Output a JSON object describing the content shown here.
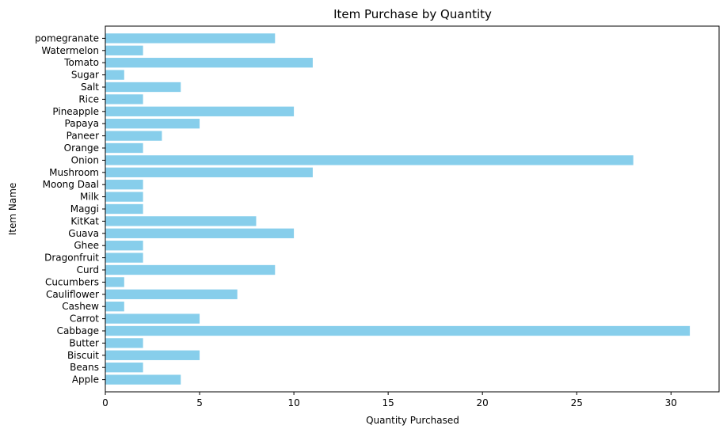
{
  "chart_data": {
    "type": "bar",
    "orientation": "horizontal",
    "title": "Item Purchase by Quantity",
    "xlabel": "Quantity Purchased",
    "ylabel": "Item Name",
    "xlim": [
      0,
      32.55
    ],
    "xticks": [
      0,
      5,
      10,
      15,
      20,
      25,
      30
    ],
    "grid": false,
    "bar_color": "#87ceeb",
    "categories": [
      "Apple",
      "Beans",
      "Biscuit",
      "Butter",
      "Cabbage",
      "Carrot",
      "Cashew",
      "Cauliflower",
      "Cucumbers",
      "Curd",
      "Dragonfruit",
      "Ghee",
      "Guava",
      "KitKat",
      "Maggi",
      "Milk",
      "Moong Daal",
      "Mushroom",
      "Onion",
      "Orange",
      "Paneer",
      "Papaya",
      "Pineapple",
      "Rice",
      "Salt",
      "Sugar",
      "Tomato",
      "Watermelon",
      "pomegranate"
    ],
    "values": [
      4,
      2,
      5,
      2,
      31,
      5,
      1,
      7,
      1,
      9,
      2,
      2,
      10,
      8,
      2,
      2,
      2,
      11,
      28,
      2,
      3,
      5,
      10,
      2,
      4,
      1,
      11,
      2,
      9
    ]
  }
}
